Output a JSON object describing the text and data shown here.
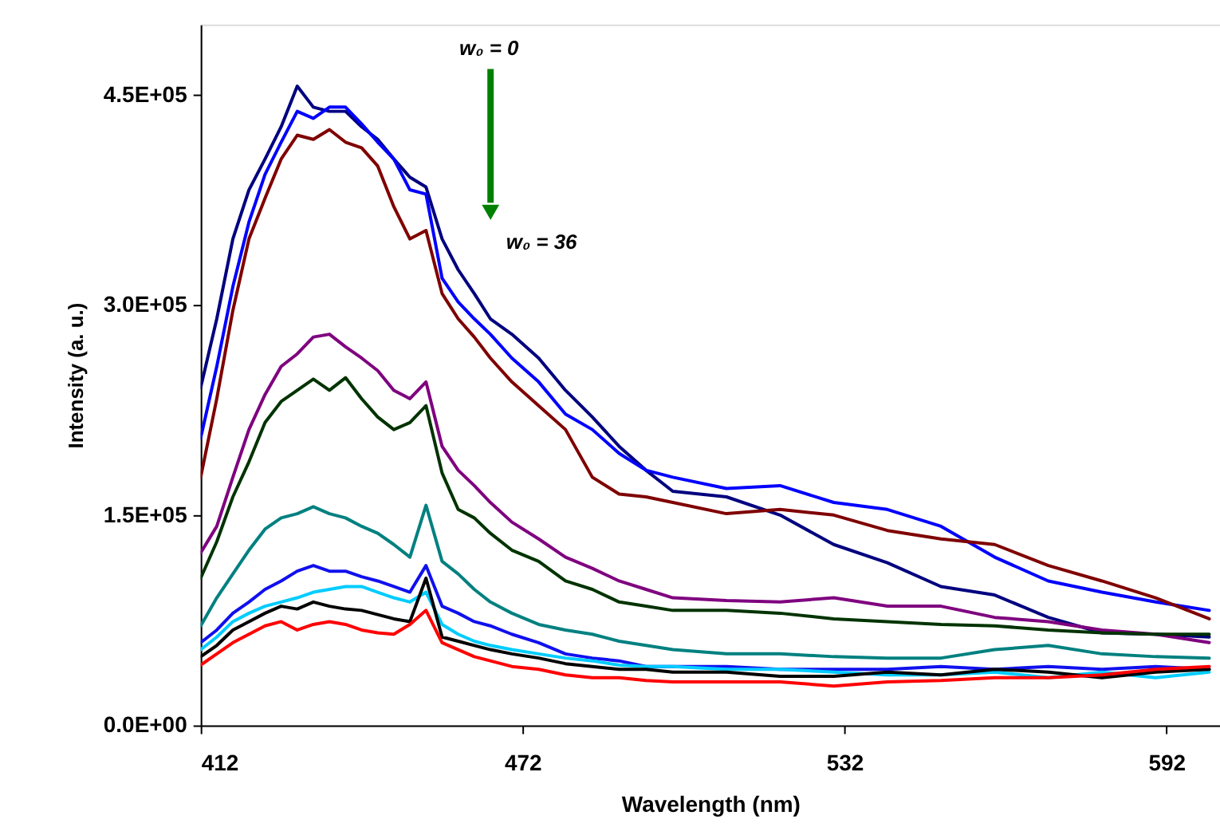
{
  "chart_data": {
    "type": "line",
    "xlabel": "Wavelength (nm)",
    "ylabel": "Intensity (a. u.)",
    "x": [
      412,
      415,
      418,
      421,
      424,
      427,
      430,
      433,
      436,
      439,
      442,
      445,
      448,
      451,
      454,
      457,
      460,
      463,
      466,
      470,
      475,
      480,
      485,
      490,
      495,
      500,
      510,
      520,
      530,
      540,
      550,
      560,
      570,
      580,
      590,
      600
    ],
    "series": [
      {
        "color": "#00007f",
        "values": [
          241000,
          290000,
          347000,
          382000,
          404000,
          427000,
          456000,
          441000,
          438000,
          438000,
          427000,
          418000,
          404000,
          391000,
          384000,
          347000,
          325000,
          308000,
          290000,
          279000,
          262000,
          239000,
          220000,
          199000,
          182000,
          167000,
          163000,
          150000,
          129000,
          116000,
          99000,
          93000,
          77000,
          66000,
          65000,
          63000
        ]
      },
      {
        "color": "#0000ff",
        "values": [
          205000,
          256000,
          313000,
          359000,
          393000,
          416000,
          438000,
          433000,
          441000,
          441000,
          429000,
          416000,
          404000,
          382000,
          379000,
          319000,
          302000,
          290000,
          279000,
          262000,
          245000,
          222000,
          211000,
          194000,
          182000,
          177000,
          169000,
          171000,
          159000,
          154000,
          142000,
          120000,
          103000,
          95000,
          88000,
          82000
        ]
      },
      {
        "color": "#7f0000",
        "values": [
          177000,
          233000,
          296000,
          347000,
          376000,
          404000,
          421000,
          418000,
          425000,
          416000,
          412000,
          399000,
          370000,
          347000,
          353000,
          308000,
          290000,
          277000,
          262000,
          245000,
          228000,
          211000,
          177000,
          165000,
          163000,
          159000,
          151000,
          154000,
          150000,
          139000,
          133000,
          129000,
          114000,
          103000,
          91000,
          76000
        ]
      },
      {
        "color": "#7f007f",
        "values": [
          123000,
          142000,
          177000,
          211000,
          236000,
          256000,
          265000,
          277000,
          279000,
          270000,
          262000,
          253000,
          239000,
          233000,
          245000,
          199000,
          182000,
          171000,
          159000,
          145000,
          133000,
          120000,
          112000,
          103000,
          97000,
          91000,
          89000,
          88000,
          91000,
          85000,
          85000,
          77000,
          74000,
          68000,
          65000,
          59000
        ]
      },
      {
        "color": "#003300",
        "values": [
          105000,
          131000,
          163000,
          188000,
          216000,
          231000,
          239000,
          247000,
          239000,
          248000,
          233000,
          220000,
          211000,
          216000,
          228000,
          180000,
          154000,
          148000,
          137000,
          125000,
          117000,
          103000,
          97000,
          88000,
          85000,
          82000,
          82000,
          80000,
          76000,
          74000,
          72000,
          71000,
          68000,
          66000,
          65000,
          65000
        ]
      },
      {
        "color": "#008080",
        "values": [
          71000,
          91000,
          108000,
          125000,
          140000,
          148000,
          151000,
          156000,
          151000,
          148000,
          142000,
          137000,
          129000,
          120000,
          157000,
          117000,
          108000,
          97000,
          88000,
          80000,
          72000,
          68000,
          65000,
          60000,
          57000,
          54000,
          51000,
          51000,
          49000,
          48000,
          48000,
          54000,
          57000,
          51000,
          49000,
          48000
        ]
      },
      {
        "color": "#1010ee",
        "values": [
          59000,
          68000,
          80000,
          88000,
          97000,
          103000,
          110000,
          114000,
          110000,
          110000,
          106000,
          103000,
          99000,
          95000,
          114000,
          85000,
          80000,
          74000,
          71000,
          65000,
          59000,
          51000,
          48000,
          46000,
          42000,
          42000,
          42000,
          40000,
          40000,
          40000,
          42000,
          40000,
          42000,
          40000,
          42000,
          40000
        ]
      },
      {
        "color": "#00ccff",
        "values": [
          54000,
          63000,
          74000,
          80000,
          85000,
          88000,
          91000,
          95000,
          97000,
          99000,
          99000,
          95000,
          91000,
          88000,
          95000,
          72000,
          65000,
          60000,
          57000,
          54000,
          51000,
          48000,
          46000,
          43000,
          42000,
          42000,
          40000,
          40000,
          38000,
          36000,
          36000,
          38000,
          34000,
          38000,
          34000,
          38000
        ]
      },
      {
        "color": "#000000",
        "values": [
          49000,
          57000,
          68000,
          74000,
          80000,
          85000,
          83000,
          88000,
          85000,
          83000,
          82000,
          79000,
          76000,
          74000,
          105000,
          63000,
          60000,
          57000,
          54000,
          51000,
          48000,
          44000,
          42000,
          40000,
          40000,
          38000,
          38000,
          35000,
          35000,
          38000,
          36000,
          40000,
          38000,
          34000,
          38000,
          40000
        ]
      },
      {
        "color": "#ff0000",
        "values": [
          43000,
          51000,
          59000,
          65000,
          71000,
          74000,
          68000,
          72000,
          74000,
          72000,
          68000,
          66000,
          65000,
          72000,
          82000,
          59000,
          54000,
          49000,
          46000,
          42000,
          40000,
          36000,
          34000,
          34000,
          32000,
          31000,
          31000,
          31000,
          28000,
          31000,
          32000,
          34000,
          34000,
          36000,
          40000,
          42000
        ]
      }
    ],
    "xlim": [
      412,
      602
    ],
    "xticks": [
      412,
      472,
      532,
      592
    ],
    "ylim": [
      0,
      500000
    ],
    "yticks": [
      {
        "value": 0,
        "label": "0.0E+00"
      },
      {
        "value": 150000,
        "label": "1.5E+05"
      },
      {
        "value": 300000,
        "label": "3.0E+05"
      },
      {
        "value": 450000,
        "label": "4.5E+05"
      }
    ],
    "annotations": [
      "w₀ = 0",
      "w₀ = 36"
    ],
    "grid": false,
    "marker": "none",
    "line_style": "solid"
  }
}
